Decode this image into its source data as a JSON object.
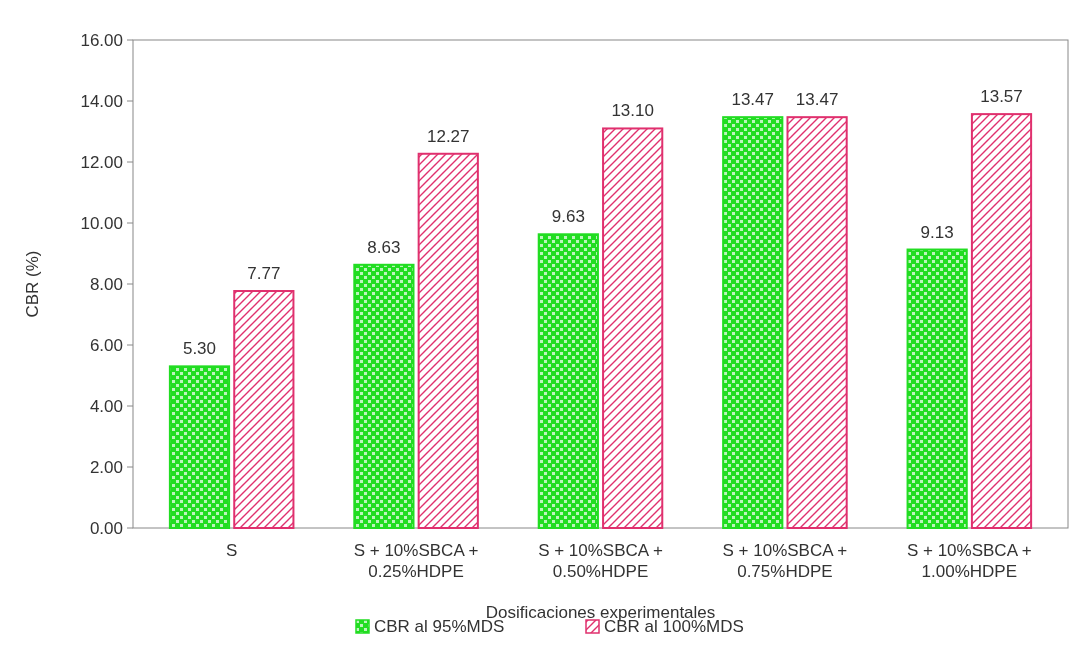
{
  "chart_data": {
    "type": "bar",
    "xlabel": "Dosificaciones experimentales",
    "ylabel": "CBR (%)",
    "categories": [
      "S",
      "S + 10%SBCA + 0.25%HDPE",
      "S + 10%SBCA + 0.50%HDPE",
      "S + 10%SBCA + 0.75%HDPE",
      "S + 10%SBCA + 1.00%HDPE"
    ],
    "series": [
      {
        "name": "CBR al 95%MDS",
        "color": "#22dd22",
        "values": [
          5.3,
          8.63,
          9.63,
          13.47,
          9.13
        ],
        "value_labels": [
          "5.30",
          "8.63",
          "9.63",
          "13.47",
          "9.13"
        ]
      },
      {
        "name": "CBR al 100%MDS",
        "color": "#e0306e",
        "values": [
          7.77,
          12.27,
          13.1,
          13.47,
          13.57
        ],
        "value_labels": [
          "7.77",
          "12.27",
          "13.10",
          "13.47",
          "13.57"
        ]
      }
    ],
    "ylim": [
      0,
      16
    ],
    "yticks": [
      {
        "value": 0,
        "label": "0.00"
      },
      {
        "value": 2,
        "label": "2.00"
      },
      {
        "value": 4,
        "label": "4.00"
      },
      {
        "value": 6,
        "label": "6.00"
      },
      {
        "value": 8,
        "label": "8.00"
      },
      {
        "value": 10,
        "label": "10.00"
      },
      {
        "value": 12,
        "label": "12.00"
      },
      {
        "value": 14,
        "label": "14.00"
      },
      {
        "value": 16,
        "label": "16.00"
      }
    ],
    "legend": "bottom"
  }
}
